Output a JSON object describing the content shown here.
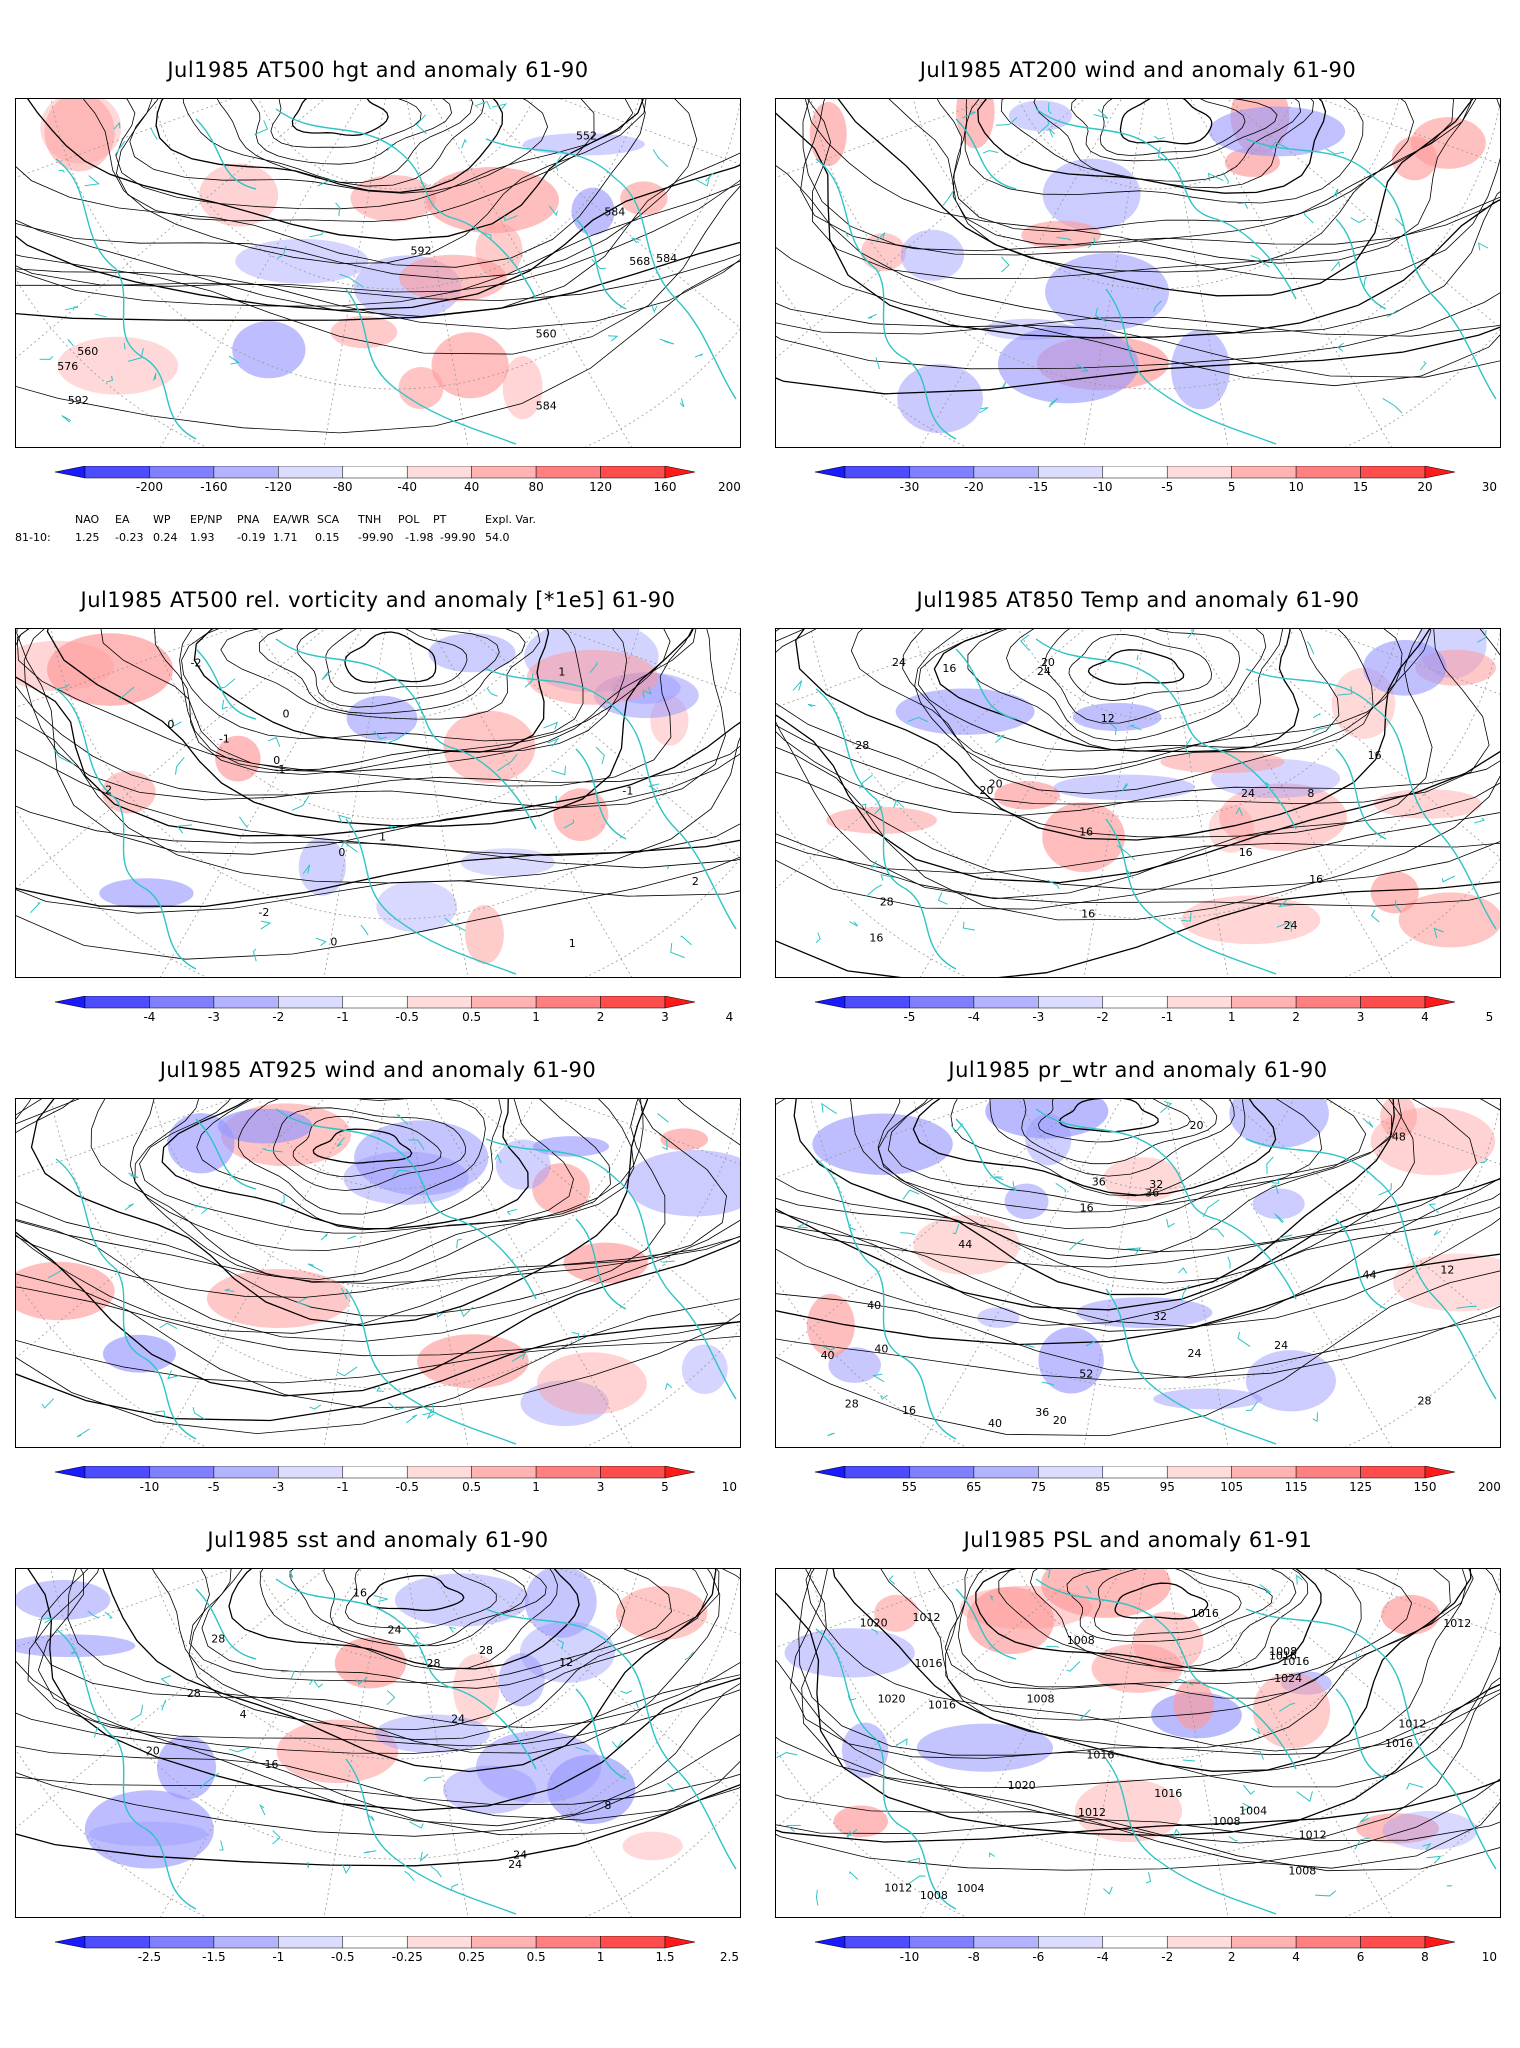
{
  "panels": [
    {
      "id": "p1",
      "title": "Jul1985 AT500 hgt and anomaly 61-90",
      "field": "contour",
      "labels": [
        "552",
        "560",
        "560",
        "568",
        "576",
        "584",
        "584",
        "584",
        "592",
        "592"
      ],
      "colorbar": {
        "ticks": [
          "-200",
          "-160",
          "-120",
          "-80",
          "-40",
          "40",
          "80",
          "120",
          "160",
          "200"
        ],
        "colors": [
          "#1a1aff",
          "#4d4dff",
          "#8080ff",
          "#b3b3ff",
          "#dcdcff",
          "#ffffff",
          "#ffdcdc",
          "#ffb3b3",
          "#ff8080",
          "#ff4d4d",
          "#ff1a1a"
        ]
      }
    },
    {
      "id": "p2",
      "title": "Jul1985 AT200 wind and anomaly 61-90",
      "field": "streamline",
      "labels": [],
      "colorbar": {
        "ticks": [
          "-30",
          "-20",
          "-15",
          "-10",
          "-5",
          "5",
          "10",
          "15",
          "20",
          "30"
        ],
        "colors": [
          "#1a1aff",
          "#4d4dff",
          "#8080ff",
          "#b3b3ff",
          "#dcdcff",
          "#ffffff",
          "#ffdcdc",
          "#ffb3b3",
          "#ff8080",
          "#ff4d4d",
          "#ff1a1a"
        ]
      }
    },
    {
      "id": "p3",
      "title": "Jul1985 AT500 rel. vorticity and anomaly [*1e5] 61-90",
      "field": "contour",
      "labels": [
        "0",
        "0",
        "0",
        "0",
        "0",
        "-1",
        "-1",
        "-2",
        "-2",
        "1",
        "1",
        "2",
        "2",
        "-1",
        "1"
      ],
      "colorbar": {
        "ticks": [
          "-4",
          "-3",
          "-2",
          "-1",
          "-0.5",
          "0.5",
          "1",
          "2",
          "3",
          "4"
        ],
        "colors": [
          "#1a1aff",
          "#4d4dff",
          "#8080ff",
          "#b3b3ff",
          "#dcdcff",
          "#ffffff",
          "#ffdcdc",
          "#ffb3b3",
          "#ff8080",
          "#ff4d4d",
          "#ff1a1a"
        ]
      }
    },
    {
      "id": "p4",
      "title": "Jul1985 AT850 Temp and anomaly 61-90",
      "field": "contour",
      "labels": [
        "20",
        "24",
        "24",
        "28",
        "8",
        "12",
        "16",
        "16",
        "16",
        "16",
        "20",
        "24",
        "28",
        "24",
        "20",
        "16",
        "16",
        "16"
      ],
      "colorbar": {
        "ticks": [
          "-5",
          "-4",
          "-3",
          "-2",
          "-1",
          "1",
          "2",
          "3",
          "4",
          "5"
        ],
        "colors": [
          "#1a1aff",
          "#4d4dff",
          "#8080ff",
          "#b3b3ff",
          "#dcdcff",
          "#ffffff",
          "#ffdcdc",
          "#ffb3b3",
          "#ff8080",
          "#ff4d4d",
          "#ff1a1a"
        ]
      }
    },
    {
      "id": "p5",
      "title": "Jul1985 AT925 wind and anomaly 61-90",
      "field": "streamline",
      "labels": [],
      "colorbar": {
        "ticks": [
          "-10",
          "-5",
          "-3",
          "-1",
          "-0.5",
          "0.5",
          "1",
          "3",
          "5",
          "10"
        ],
        "colors": [
          "#1a1aff",
          "#4d4dff",
          "#8080ff",
          "#b3b3ff",
          "#dcdcff",
          "#ffffff",
          "#ffdcdc",
          "#ffb3b3",
          "#ff8080",
          "#ff4d4d",
          "#ff1a1a"
        ]
      }
    },
    {
      "id": "p6",
      "title": "Jul1985 pr_wtr and anomaly 61-90",
      "field": "contour",
      "labels": [
        "48",
        "40",
        "36",
        "32",
        "28",
        "24",
        "20",
        "16",
        "12",
        "52",
        "44",
        "40",
        "36",
        "32",
        "28",
        "24",
        "20",
        "16",
        "44",
        "40",
        "36",
        "40"
      ],
      "colorbar": {
        "ticks": [
          "55",
          "65",
          "75",
          "85",
          "95",
          "105",
          "115",
          "125",
          "150",
          "200"
        ],
        "colors": [
          "#1a1aff",
          "#4d4dff",
          "#8080ff",
          "#b3b3ff",
          "#dcdcff",
          "#ffffff",
          "#ffdcdc",
          "#ffb3b3",
          "#ff8080",
          "#ff4d4d",
          "#ff1a1a"
        ]
      }
    },
    {
      "id": "p7",
      "title": "Jul1985 sst and anomaly 61-90",
      "field": "contour",
      "labels": [
        "24",
        "28",
        "28",
        "28",
        "24",
        "20",
        "16",
        "12",
        "8",
        "4",
        "24",
        "28",
        "16",
        "24"
      ],
      "colorbar": {
        "ticks": [
          "-2.5",
          "-1.5",
          "-1",
          "-0.5",
          "-0.25",
          "0.25",
          "0.5",
          "1",
          "1.5",
          "2.5"
        ],
        "colors": [
          "#1a1aff",
          "#4d4dff",
          "#8080ff",
          "#b3b3ff",
          "#dcdcff",
          "#ffffff",
          "#ffdcdc",
          "#ffb3b3",
          "#ff8080",
          "#ff4d4d",
          "#ff1a1a"
        ]
      }
    },
    {
      "id": "p8",
      "title": "Jul1985 PSL and anomaly 61-91",
      "field": "contour",
      "labels": [
        "1016",
        "1016",
        "1012",
        "1012",
        "1020",
        "1024",
        "1020",
        "1016",
        "1008",
        "1008",
        "1016",
        "1020",
        "1016",
        "1008",
        "1012",
        "1004",
        "1008",
        "1012",
        "1016",
        "1008",
        "1008",
        "1012",
        "1004",
        "1016",
        "1016",
        "1012"
      ],
      "colorbar": {
        "ticks": [
          "-10",
          "-8",
          "-6",
          "-4",
          "-2",
          "2",
          "4",
          "6",
          "8",
          "10"
        ],
        "colors": [
          "#1a1aff",
          "#4d4dff",
          "#8080ff",
          "#b3b3ff",
          "#dcdcff",
          "#ffffff",
          "#ffdcdc",
          "#ffb3b3",
          "#ff8080",
          "#ff4d4d",
          "#ff1a1a"
        ]
      }
    }
  ],
  "teleconnections": {
    "row_label": "81-10:",
    "headers": [
      "NAO",
      "EA",
      "WP",
      "EP/NP",
      "PNA",
      "EA/WR",
      "SCA",
      "TNH",
      "POL",
      "PT",
      "Expl. Var."
    ],
    "values": [
      "1.25",
      "-0.23",
      "0.24",
      "1.93",
      "-0.19",
      "1.71",
      "0.15",
      "-99.90",
      "-1.98",
      "-99.90",
      "54.0"
    ]
  },
  "map_colors": {
    "coast": "#2ec4c4",
    "grid": "#999999",
    "contour": "#000000",
    "pos_anom": "#ff9a9a",
    "neg_anom": "#9a9aff"
  }
}
